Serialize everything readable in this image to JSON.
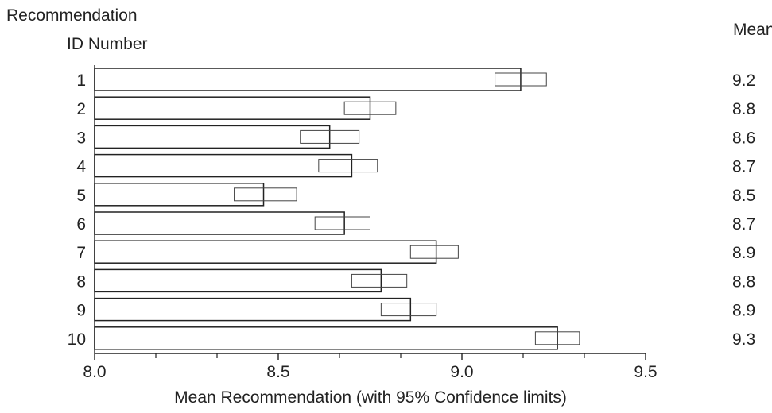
{
  "chart_data": {
    "type": "bar",
    "orientation": "horizontal",
    "y_header_line1": "Recommendation",
    "y_header_line2": "ID Number",
    "mean_header": "Mean",
    "xlabel": "Mean Recommendation (with 95% Confidence limits)",
    "xlim": [
      8.0,
      9.5
    ],
    "xticks": [
      "8.0",
      "8.5",
      "9.0",
      "9.5"
    ],
    "xtick_values": [
      8.0,
      8.5,
      9.0,
      9.5
    ],
    "grid": false,
    "categories": [
      "1",
      "2",
      "3",
      "4",
      "5",
      "6",
      "7",
      "8",
      "9",
      "10"
    ],
    "values": [
      9.16,
      8.75,
      8.64,
      8.7,
      8.46,
      8.68,
      8.93,
      8.78,
      8.86,
      9.26
    ],
    "ci_lower": [
      9.09,
      8.68,
      8.56,
      8.61,
      8.38,
      8.6,
      8.86,
      8.7,
      8.78,
      9.2
    ],
    "ci_upper": [
      9.23,
      8.82,
      8.72,
      8.77,
      8.55,
      8.75,
      8.99,
      8.85,
      8.93,
      9.32
    ],
    "mean_labels": [
      "9.2",
      "8.8",
      "8.6",
      "8.7",
      "8.5",
      "8.7",
      "8.9",
      "8.8",
      "8.9",
      "9.3"
    ]
  }
}
